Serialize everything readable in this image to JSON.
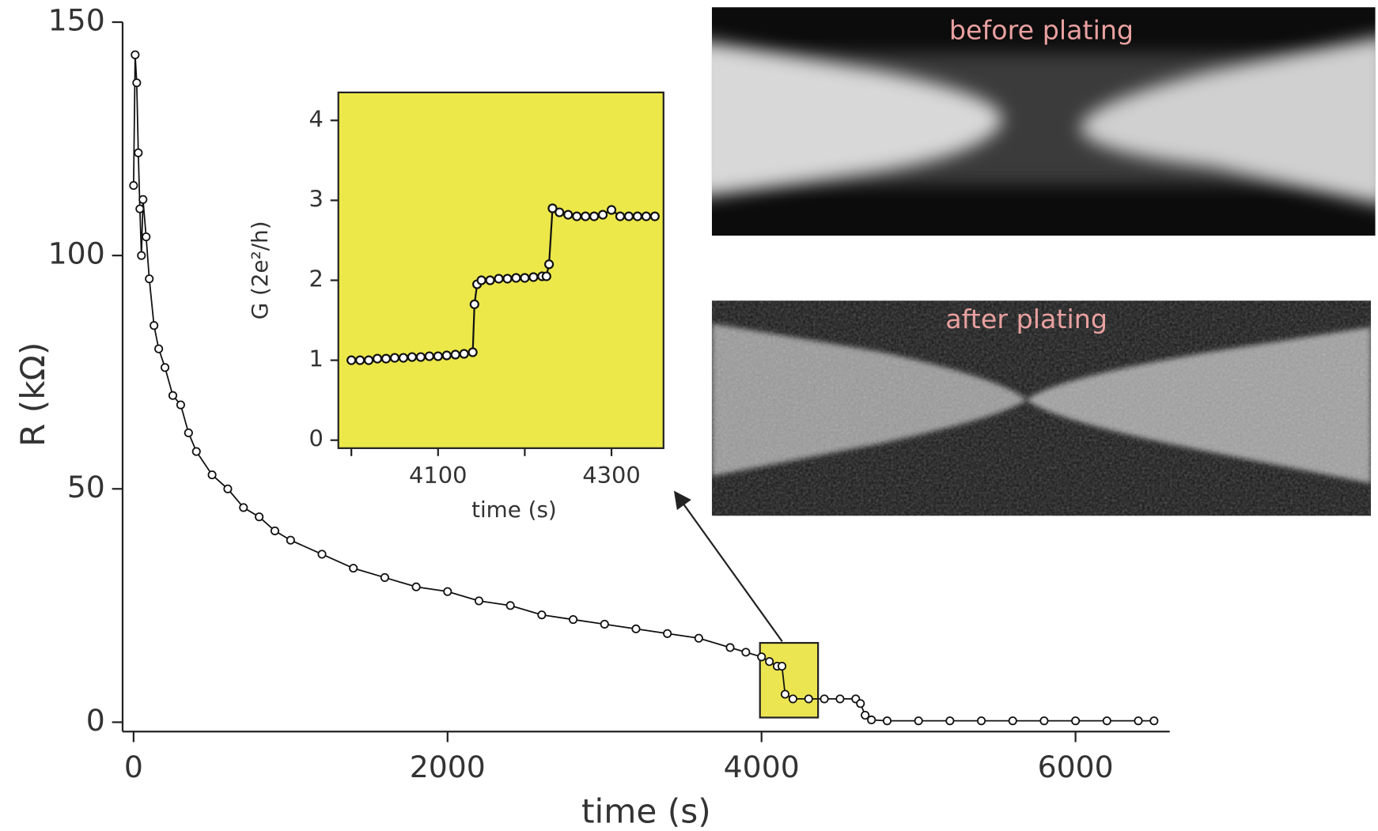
{
  "chart_data": [
    {
      "type": "line",
      "x_label": "time (s)",
      "y_label": "R (kΩ)",
      "color": "#111111",
      "x": [
        0,
        10,
        20,
        30,
        40,
        50,
        60,
        80,
        100,
        130,
        160,
        200,
        250,
        300,
        350,
        400,
        500,
        600,
        700,
        800,
        900,
        1000,
        1200,
        1400,
        1600,
        1800,
        2000,
        2200,
        2400,
        2600,
        2800,
        3000,
        3200,
        3400,
        3600,
        3800,
        3900,
        4000,
        4050,
        4100,
        4130,
        4150,
        4200,
        4300,
        4400,
        4500,
        4600,
        4630,
        4660,
        4700,
        4800,
        5000,
        5200,
        5400,
        5600,
        5800,
        6000,
        6200,
        6400,
        6500
      ],
      "values": [
        115,
        143,
        137,
        122,
        110,
        100,
        112,
        104,
        95,
        85,
        80,
        76,
        70,
        68,
        62,
        58,
        53,
        50,
        46,
        44,
        41,
        39,
        36,
        33,
        31,
        29,
        28,
        26,
        25,
        23,
        22,
        21,
        20,
        19,
        18,
        16,
        15,
        14,
        13,
        12,
        12,
        6,
        5,
        5,
        5,
        5,
        5,
        4,
        1.5,
        0.5,
        0.3,
        0.3,
        0.3,
        0.3,
        0.3,
        0.3,
        0.3,
        0.3,
        0.3,
        0.3
      ],
      "xlim": [
        -70,
        6600
      ],
      "ylim": [
        -2,
        150
      ],
      "xticks": [
        0,
        2000,
        4000,
        6000
      ],
      "yticks": [
        0,
        50,
        100,
        150
      ],
      "highlight": {
        "x": [
          3990,
          4360
        ],
        "y": [
          1,
          17
        ],
        "color": "#ece552"
      }
    },
    {
      "type": "line",
      "x_label": "time (s)",
      "y_label": "G (2e²/h)",
      "color": "#111111",
      "background": "#ece84a",
      "x": [
        4000,
        4010,
        4020,
        4030,
        4040,
        4050,
        4060,
        4070,
        4080,
        4090,
        4100,
        4110,
        4120,
        4130,
        4140,
        4142,
        4145,
        4150,
        4160,
        4170,
        4180,
        4190,
        4200,
        4210,
        4220,
        4225,
        4228,
        4232,
        4240,
        4250,
        4260,
        4270,
        4280,
        4290,
        4300,
        4310,
        4320,
        4330,
        4340,
        4350
      ],
      "values": [
        1.0,
        1.0,
        1.0,
        1.02,
        1.02,
        1.03,
        1.03,
        1.04,
        1.04,
        1.05,
        1.05,
        1.06,
        1.07,
        1.08,
        1.1,
        1.7,
        1.95,
        2.0,
        2.0,
        2.02,
        2.02,
        2.03,
        2.03,
        2.04,
        2.05,
        2.05,
        2.2,
        2.9,
        2.85,
        2.82,
        2.8,
        2.8,
        2.8,
        2.82,
        2.88,
        2.8,
        2.8,
        2.8,
        2.8,
        2.8
      ],
      "xlim": [
        3985,
        4360
      ],
      "ylim": [
        -0.1,
        4.35
      ],
      "xticks": [
        4100,
        4300
      ],
      "xminor": [
        4000,
        4200
      ],
      "yticks": [
        0,
        1,
        2,
        3,
        4
      ]
    }
  ],
  "images": [
    {
      "label": "before plating"
    },
    {
      "label": "after plating"
    }
  ]
}
